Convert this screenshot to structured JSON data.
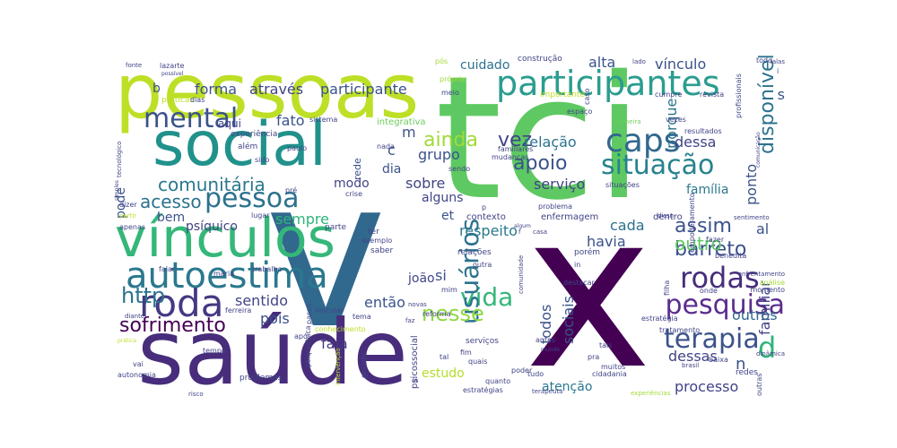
{
  "words": [
    {
      "text": "tci",
      "color": "#5ec962"
    },
    {
      "text": "x",
      "color": "#440154"
    },
    {
      "text": "v",
      "color": "#31688e"
    },
    {
      "text": "pessoas",
      "color": "#bddf26"
    },
    {
      "text": "saúde",
      "color": "#472d7b"
    },
    {
      "text": "social",
      "color": "#21918c"
    },
    {
      "text": "vínculos",
      "color": "#35b779"
    },
    {
      "text": "participantes",
      "color": "#2a9d8f"
    },
    {
      "text": "caps",
      "color": "#31688e"
    },
    {
      "text": "situação",
      "color": "#26828e"
    },
    {
      "text": "terapia",
      "color": "#3b528b"
    },
    {
      "text": "pesquisa",
      "color": "#5b2c8f"
    },
    {
      "text": "rodas",
      "color": "#472d7b"
    },
    {
      "text": "autoestima",
      "color": "#2a788e"
    },
    {
      "text": "roda",
      "color": "#443983"
    },
    {
      "text": "mental",
      "color": "#3b528b"
    },
    {
      "text": "pessoa",
      "color": "#2c728e"
    },
    {
      "text": "vida",
      "color": "#35b779"
    },
    {
      "text": "usuários",
      "color": "#2c728e"
    },
    {
      "text": "nesse",
      "color": "#8fd744"
    },
    {
      "text": "sofrimento",
      "color": "#440154"
    },
    {
      "text": "http",
      "color": "#2c728e"
    },
    {
      "text": "apoio",
      "color": "#3b528b"
    },
    {
      "text": "ainda",
      "color": "#a2da37"
    },
    {
      "text": "vez",
      "color": "#414487"
    },
    {
      "text": "comunitária",
      "color": "#2a788e"
    },
    {
      "text": "acesso",
      "color": "#2c728e"
    },
    {
      "text": "barreto",
      "color": "#3b528b"
    },
    {
      "text": "assim",
      "color": "#3b528b"
    },
    {
      "text": "disponível",
      "color": "#2c728e"
    },
    {
      "text": "d",
      "color": "#2fb47c"
    },
    {
      "text": "família",
      "color": "#2a788e"
    },
    {
      "text": "outro",
      "color": "#5ec962"
    },
    {
      "text": "processo",
      "color": "#414487"
    },
    {
      "text": "familiar",
      "color": "#414487"
    },
    {
      "text": "outros",
      "color": "#31688e"
    },
    {
      "text": "fala",
      "color": "#443983"
    },
    {
      "text": "pois",
      "color": "#3b528b"
    },
    {
      "text": "sentido",
      "color": "#414487"
    },
    {
      "text": "então",
      "color": "#3b528b"
    },
    {
      "text": "sobre",
      "color": "#414487"
    },
    {
      "text": "grupo",
      "color": "#3b528b"
    },
    {
      "text": "relação",
      "color": "#2c728e"
    },
    {
      "text": "serviço",
      "color": "#414487"
    },
    {
      "text": "ponto",
      "color": "#3b528b"
    },
    {
      "text": "alta",
      "color": "#3b528b"
    },
    {
      "text": "vínculo",
      "color": "#3b528b"
    },
    {
      "text": "através",
      "color": "#414487"
    },
    {
      "text": "participante",
      "color": "#3b528b"
    },
    {
      "text": "forma",
      "color": "#3b528b"
    },
    {
      "text": "cuidado",
      "color": "#2c728e"
    },
    {
      "text": "fato",
      "color": "#3b528b"
    },
    {
      "text": "porque",
      "color": "#2c728e"
    },
    {
      "text": "dessa",
      "color": "#414487"
    },
    {
      "text": "sempre",
      "color": "#2fb47c"
    },
    {
      "text": "havia",
      "color": "#3b528b"
    },
    {
      "text": "cada",
      "color": "#2c728e"
    },
    {
      "text": "respeito",
      "color": "#2a788e"
    },
    {
      "text": "todos",
      "color": "#3b528b"
    },
    {
      "text": "sociais",
      "color": "#3b528b"
    },
    {
      "text": "estudo",
      "color": "#b5de2b"
    },
    {
      "text": "atenção",
      "color": "#2a788e"
    },
    {
      "text": "dessas",
      "color": "#414487"
    },
    {
      "text": "m",
      "color": "#3b528b"
    },
    {
      "text": "s",
      "color": "#3b528b"
    },
    {
      "text": "al",
      "color": "#3b528b"
    },
    {
      "text": "n",
      "color": "#3b528b"
    },
    {
      "text": "c",
      "color": "#3b528b"
    },
    {
      "text": "b",
      "color": "#3b528b"
    },
    {
      "text": "si",
      "color": "#3b528b"
    },
    {
      "text": "dia",
      "color": "#3b528b"
    },
    {
      "text": "modo",
      "color": "#414487"
    },
    {
      "text": "alguns",
      "color": "#414487"
    },
    {
      "text": "joão",
      "color": "#414487"
    },
    {
      "text": "et",
      "color": "#3b528b"
    },
    {
      "text": "psíquico",
      "color": "#414487"
    },
    {
      "text": "bem",
      "color": "#3b528b"
    },
    {
      "text": "pode",
      "color": "#3b528b"
    },
    {
      "text": "aqui",
      "color": "#414487"
    },
    {
      "text": "rede",
      "color": "#3b528b"
    },
    {
      "text": "contexto",
      "color": "#414487"
    },
    {
      "text": "enfermagem",
      "color": "#414487"
    },
    {
      "text": "dentro",
      "color": "#414487"
    },
    {
      "text": "integrativa",
      "color": "#6ccd5a"
    },
    {
      "text": "experiência",
      "color": "#414487"
    },
    {
      "text": "além",
      "color": "#414487"
    },
    {
      "text": "sido",
      "color": "#414487"
    },
    {
      "text": "paulo",
      "color": "#414487"
    },
    {
      "text": "nada",
      "color": "#414487"
    },
    {
      "text": "sistema",
      "color": "#414487"
    },
    {
      "text": "construção",
      "color": "#414487"
    },
    {
      "text": "pós",
      "color": "#a2da37"
    },
    {
      "text": "própria",
      "color": "#a2da37"
    },
    {
      "text": "meio",
      "color": "#414487"
    },
    {
      "text": "importante",
      "color": "#bddf26"
    },
    {
      "text": "espaço",
      "color": "#414487"
    },
    {
      "text": "caso",
      "color": "#414487"
    },
    {
      "text": "lado",
      "color": "#414487"
    },
    {
      "text": "todo",
      "color": "#414487"
    },
    {
      "text": "falas",
      "color": "#414487"
    },
    {
      "text": "i",
      "color": "#414487"
    },
    {
      "text": "cumpre",
      "color": "#414487"
    },
    {
      "text": "revista",
      "color": "#414487"
    },
    {
      "text": "primeira",
      "color": "#6ccd5a"
    },
    {
      "text": "vezes",
      "color": "#414487"
    },
    {
      "text": "resultados",
      "color": "#414487"
    },
    {
      "text": "profissionais",
      "color": "#414487"
    },
    {
      "text": "comunicação",
      "color": "#414487"
    },
    {
      "text": "familiares",
      "color": "#414487"
    },
    {
      "text": "mudanças",
      "color": "#414487"
    },
    {
      "text": "sendo",
      "color": "#414487"
    },
    {
      "text": "situações",
      "color": "#414487"
    },
    {
      "text": "lazarte",
      "color": "#414487"
    },
    {
      "text": "fonte",
      "color": "#414487"
    },
    {
      "text": "possível",
      "color": "#414487"
    },
    {
      "text": "práticas",
      "color": "#bddf26"
    },
    {
      "text": "dias",
      "color": "#414487"
    },
    {
      "text": "tecnológico",
      "color": "#414487"
    },
    {
      "text": "simples",
      "color": "#414487"
    },
    {
      "text": "partir",
      "color": "#bddf26"
    },
    {
      "text": "dizer",
      "color": "#414487"
    },
    {
      "text": "pré",
      "color": "#414487"
    },
    {
      "text": "crise",
      "color": "#414487"
    },
    {
      "text": "lugar",
      "color": "#414487"
    },
    {
      "text": "apenas",
      "color": "#414487"
    },
    {
      "text": "parte",
      "color": "#414487"
    },
    {
      "text": "ter",
      "color": "#414487"
    },
    {
      "text": "exemplo",
      "color": "#414487"
    },
    {
      "text": "problema",
      "color": "#414487"
    },
    {
      "text": "algum",
      "color": "#414487"
    },
    {
      "text": "f",
      "color": "#414487"
    },
    {
      "text": "casa",
      "color": "#414487"
    },
    {
      "text": "disso",
      "color": "#414487"
    },
    {
      "text": "sentimento",
      "color": "#414487"
    },
    {
      "text": "empoderamento",
      "color": "#414487"
    },
    {
      "text": "fazer",
      "color": "#414487"
    },
    {
      "text": "benedita",
      "color": "#414487"
    },
    {
      "text": "enfrentamento",
      "color": "#414487"
    },
    {
      "text": "análise",
      "color": "#a2da37"
    },
    {
      "text": "momento",
      "color": "#414487"
    },
    {
      "text": "onde",
      "color": "#414487"
    },
    {
      "text": "filha",
      "color": "#414487"
    },
    {
      "text": "maria",
      "color": "#414487"
    },
    {
      "text": "trabalho",
      "color": "#414487"
    },
    {
      "text": "falar",
      "color": "#414487"
    },
    {
      "text": "relações",
      "color": "#414487"
    },
    {
      "text": "saber",
      "color": "#414487"
    },
    {
      "text": "outra",
      "color": "#414487"
    },
    {
      "text": "comunidade",
      "color": "#414487"
    },
    {
      "text": "porém",
      "color": "#414487"
    },
    {
      "text": "in",
      "color": "#414487"
    },
    {
      "text": "destacar",
      "color": "#414487"
    },
    {
      "text": "mim",
      "color": "#414487"
    },
    {
      "text": "novas",
      "color": "#414487"
    },
    {
      "text": "psicossocial",
      "color": "#414487"
    },
    {
      "text": "reforma",
      "color": "#414487"
    },
    {
      "text": "faz",
      "color": "#414487"
    },
    {
      "text": "ferreira",
      "color": "#414487"
    },
    {
      "text": "tema",
      "color": "#414487"
    },
    {
      "text": "vincular",
      "color": "#414487"
    },
    {
      "text": "diante",
      "color": "#414487"
    },
    {
      "text": "passo",
      "color": "#414487"
    },
    {
      "text": "conhecimento",
      "color": "#bddf26"
    },
    {
      "text": "após",
      "color": "#414487"
    },
    {
      "text": "prática",
      "color": "#bddf26"
    },
    {
      "text": "tempo",
      "color": "#414487"
    },
    {
      "text": "psiquiátrica",
      "color": "#414487"
    },
    {
      "text": "intervenção",
      "color": "#bddf26"
    },
    {
      "text": "grande",
      "color": "#414487"
    },
    {
      "text": "vai",
      "color": "#414487"
    },
    {
      "text": "autonomia",
      "color": "#414487"
    },
    {
      "text": "problemas",
      "color": "#414487"
    },
    {
      "text": "risco",
      "color": "#414487"
    },
    {
      "text": "lá",
      "color": "#414487"
    },
    {
      "text": "serviços",
      "color": "#414487"
    },
    {
      "text": "fim",
      "color": "#414487"
    },
    {
      "text": "tal",
      "color": "#414487"
    },
    {
      "text": "quais",
      "color": "#414487"
    },
    {
      "text": "quanto",
      "color": "#414487"
    },
    {
      "text": "estratégias",
      "color": "#414487"
    },
    {
      "text": "terapeuta",
      "color": "#414487"
    },
    {
      "text": "poder",
      "color": "#414487"
    },
    {
      "text": "tudo",
      "color": "#414487"
    },
    {
      "text": "mundo",
      "color": "#414487"
    },
    {
      "text": "antes",
      "color": "#414487"
    },
    {
      "text": "pra",
      "color": "#414487"
    },
    {
      "text": "muitos",
      "color": "#414487"
    },
    {
      "text": "cidadania",
      "color": "#414487"
    },
    {
      "text": "tais",
      "color": "#414487"
    },
    {
      "text": "tratamento",
      "color": "#414487"
    },
    {
      "text": "estratégia",
      "color": "#414487"
    },
    {
      "text": "brasil",
      "color": "#414487"
    },
    {
      "text": "baixa",
      "color": "#414487"
    },
    {
      "text": "redes",
      "color": "#414487"
    },
    {
      "text": "outras",
      "color": "#414487"
    },
    {
      "text": "dinâmica",
      "color": "#414487"
    },
    {
      "text": "experiências",
      "color": "#a2da37"
    },
    {
      "text": "p",
      "color": "#414487"
    }
  ]
}
